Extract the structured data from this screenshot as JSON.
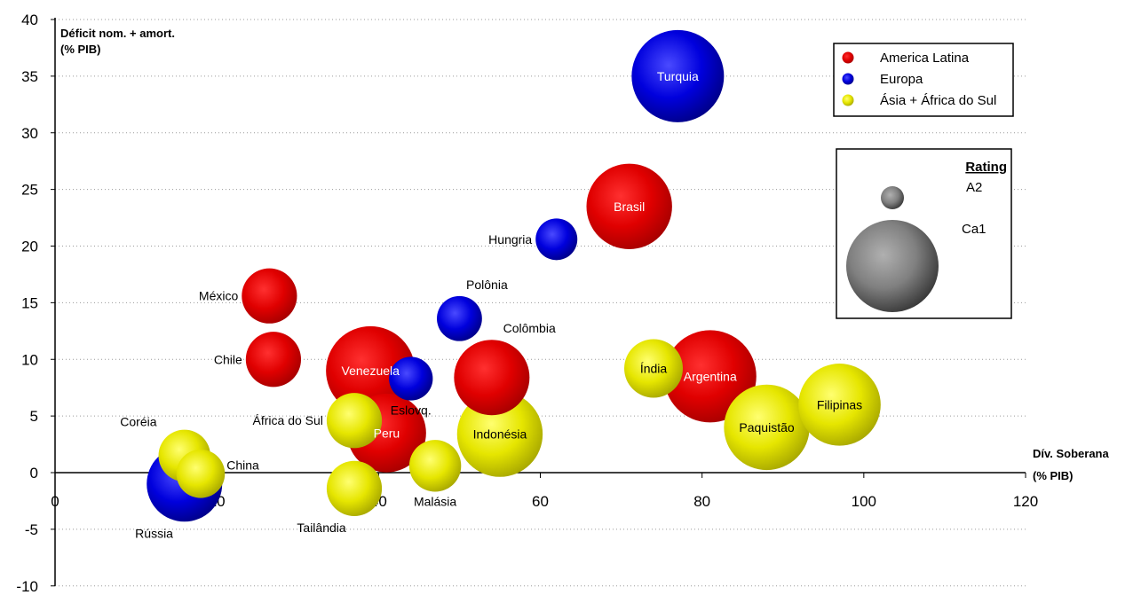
{
  "chart_data": {
    "type": "bubble",
    "ylabel_line1": "Déficit nom. + amort.",
    "ylabel_line2": "(% PIB)",
    "xlabel_line1": "Dív. Soberana",
    "xlabel_line2": "(% PIB)",
    "xlim": [
      0,
      120
    ],
    "ylim": [
      -10,
      40
    ],
    "x_ticks": [
      "0",
      "20",
      "40",
      "60",
      "80",
      "100",
      "120"
    ],
    "y_ticks": [
      "-10",
      "-5",
      "0",
      "5",
      "10",
      "15",
      "20",
      "25",
      "30",
      "35",
      "40"
    ],
    "grid": "horizontal dotted",
    "series": [
      {
        "name": "America Latina",
        "color": "#e00000"
      },
      {
        "name": "Europa",
        "color": "#0000cc"
      },
      {
        "name": "Ásia + África do Sul",
        "color": "#e6e600"
      }
    ],
    "rating_legend": {
      "title": "Rating",
      "small": "A2",
      "large": "Ca1"
    },
    "points": [
      {
        "label": "Turquia",
        "x": 77,
        "y": 35,
        "rating_size": 1.0,
        "series": 1,
        "label_pos": "inside"
      },
      {
        "label": "Brasil",
        "x": 71,
        "y": 23.5,
        "rating_size": 0.9,
        "series": 0,
        "label_pos": "inside"
      },
      {
        "label": "Argentina",
        "x": 81,
        "y": 8.5,
        "rating_size": 1.0,
        "series": 0,
        "label_pos": "inside"
      },
      {
        "label": "Venezuela",
        "x": 39,
        "y": 9,
        "rating_size": 0.95,
        "series": 0,
        "label_pos": "inside"
      },
      {
        "label": "Peru",
        "x": 41,
        "y": 3.5,
        "rating_size": 0.8,
        "series": 0,
        "label_pos": "inside"
      },
      {
        "label": "Colômbia",
        "x": 54,
        "y": 8.4,
        "rating_size": 0.75,
        "series": 0,
        "label_pos": "above-right"
      },
      {
        "label": "México",
        "x": 26.5,
        "y": 15.6,
        "rating_size": 0.45,
        "series": 0,
        "label_pos": "left"
      },
      {
        "label": "Chile",
        "x": 27,
        "y": 10,
        "rating_size": 0.45,
        "series": 0,
        "label_pos": "left"
      },
      {
        "label": "Hungria",
        "x": 62,
        "y": 20.6,
        "rating_size": 0.25,
        "series": 1,
        "label_pos": "left"
      },
      {
        "label": "Polônia",
        "x": 50,
        "y": 13.6,
        "rating_size": 0.3,
        "series": 1,
        "label_pos": "above-right"
      },
      {
        "label": "Eslovq.",
        "x": 44,
        "y": 8.3,
        "rating_size": 0.28,
        "series": 1,
        "label_pos": "below"
      },
      {
        "label": "Rússia",
        "x": 16,
        "y": -1,
        "rating_size": 0.75,
        "series": 1,
        "label_pos": "below-left"
      },
      {
        "label": "Indonésia",
        "x": 55,
        "y": 3.4,
        "rating_size": 0.9,
        "series": 2,
        "label_pos": "inside"
      },
      {
        "label": "Paquistão",
        "x": 88,
        "y": 4,
        "rating_size": 0.9,
        "series": 2,
        "label_pos": "inside"
      },
      {
        "label": "Filipinas",
        "x": 97,
        "y": 6,
        "rating_size": 0.85,
        "series": 2,
        "label_pos": "inside"
      },
      {
        "label": "Índia",
        "x": 74,
        "y": 9.2,
        "rating_size": 0.5,
        "series": 2,
        "label_pos": "inside"
      },
      {
        "label": "África do Sul",
        "x": 37,
        "y": 4.6,
        "rating_size": 0.45,
        "series": 2,
        "label_pos": "left"
      },
      {
        "label": "Malásia",
        "x": 47,
        "y": 0.6,
        "rating_size": 0.4,
        "series": 2,
        "label_pos": "below"
      },
      {
        "label": "Tailândia",
        "x": 37,
        "y": -1.4,
        "rating_size": 0.45,
        "series": 2,
        "label_pos": "below-left"
      },
      {
        "label": "Coréia",
        "x": 16,
        "y": 1.5,
        "rating_size": 0.4,
        "series": 2,
        "label_pos": "above-left"
      },
      {
        "label": "China",
        "x": 18,
        "y": -0.1,
        "rating_size": 0.35,
        "series": 2,
        "label_pos": "right"
      }
    ]
  }
}
